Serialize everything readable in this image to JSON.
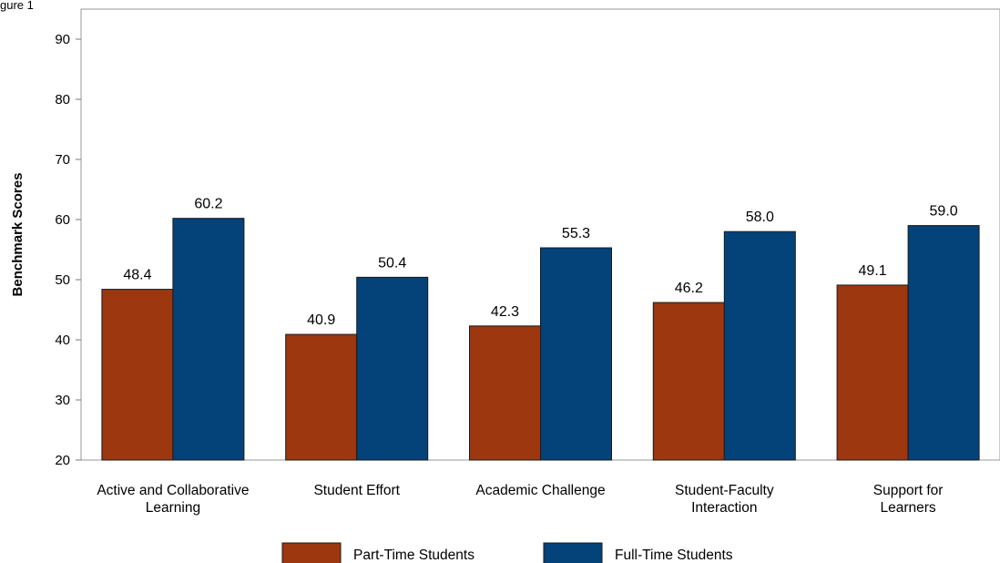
{
  "figure_label": "gure 1",
  "chart_data": {
    "type": "bar",
    "title": "",
    "xlabel": "",
    "ylabel": "Benchmark Scores",
    "ylim": [
      20,
      95
    ],
    "yticks": [
      20,
      30,
      40,
      50,
      60,
      70,
      80,
      90
    ],
    "grid": false,
    "legend_position": "bottom",
    "categories": [
      [
        "Active and Collaborative",
        "Learning"
      ],
      [
        "Student Effort"
      ],
      [
        "Academic Challenge"
      ],
      [
        "Student-Faculty",
        "Interaction"
      ],
      [
        "Support for",
        "Learners"
      ]
    ],
    "series": [
      {
        "name": "Part-Time Students",
        "color": "#9c3710",
        "values": [
          48.4,
          40.9,
          42.3,
          46.2,
          49.1
        ],
        "labels": [
          "48.4",
          "40.9",
          "42.3",
          "46.2",
          "49.1"
        ]
      },
      {
        "name": "Full-Time Students",
        "color": "#04427a",
        "values": [
          60.2,
          50.4,
          55.3,
          58.0,
          59.0
        ],
        "labels": [
          "60.2",
          "50.4",
          "55.3",
          "58.0",
          "59.0"
        ]
      }
    ]
  }
}
